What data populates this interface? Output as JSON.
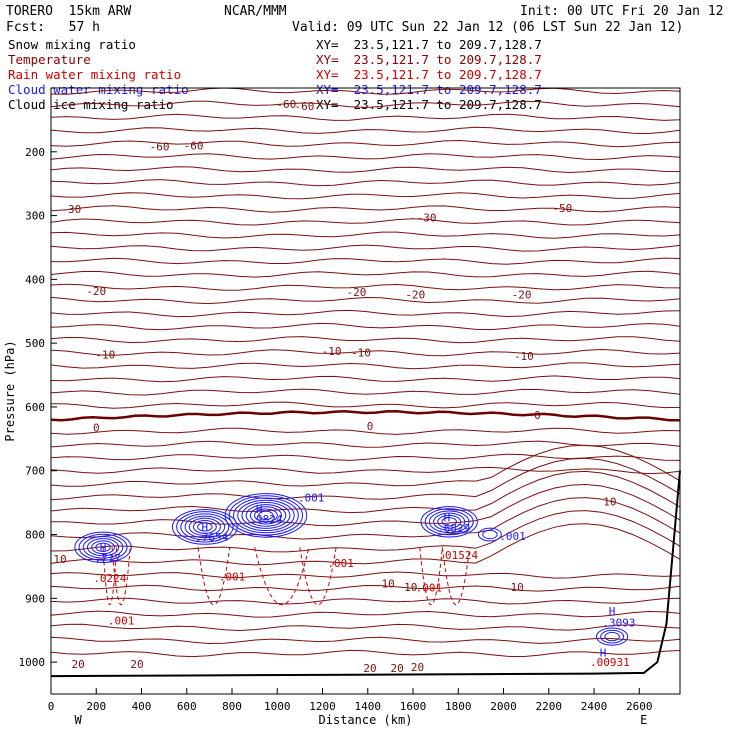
{
  "header": {
    "model": "TORERO  15km ARW",
    "org": "NCAR/MMM",
    "init": "Init: 00 UTC Fri 20 Jan 12",
    "fcst": "Fcst:   57 h",
    "valid": "Valid: 09 UTC Sun 22 Jan 12 (06 LST Sun 22 Jan 12)"
  },
  "fields": [
    {
      "label": "Snow mixing ratio",
      "xy": "XY=  23.5,121.7 to 209.7,128.7",
      "color": "#000000",
      "xy_color": "#000000"
    },
    {
      "label": "Temperature",
      "xy": "XY=  23.5,121.7 to 209.7,128.7",
      "color": "#8b0000",
      "xy_color": "#8b0000"
    },
    {
      "label": "Rain water mixing ratio",
      "xy": "XY=  23.5,121.7 to 209.7,128.7",
      "color": "#d00000",
      "xy_color": "#d00000"
    },
    {
      "label": "Cloud water mixing ratio",
      "xy": "XY=  23.5,121.7 to 209.7,128.7",
      "color": "#1a1aff",
      "xy_color": "#1a1aff"
    },
    {
      "label": "Cloud ice mixing ratio",
      "xy": "XY=  23.5,121.7 to 209.7,128.7",
      "color": "#000000",
      "xy_color": "#000000"
    }
  ],
  "chart_data": {
    "type": "contour-cross-section",
    "xlabel": "Distance (km)",
    "ylabel": "Pressure (hPa)",
    "xlim": [
      0,
      2780
    ],
    "ylim": [
      1050,
      100
    ],
    "x_ticks": [
      0,
      200,
      400,
      600,
      800,
      1000,
      1200,
      1400,
      1600,
      1800,
      2000,
      2200,
      2400,
      2600
    ],
    "y_ticks": [
      200,
      300,
      400,
      500,
      600,
      700,
      800,
      900,
      1000
    ],
    "left_end": "W",
    "right_end": "E",
    "temperature_contours": {
      "units": "C",
      "interval": 5,
      "zero_isotherm_pressure_hPa": 620,
      "labels": [
        {
          "text": "-60",
          "x": 1120,
          "p": 128
        },
        {
          "text": "-60",
          "x": 1040,
          "p": 125
        },
        {
          "text": "-60",
          "x": 480,
          "p": 192
        },
        {
          "text": "-60",
          "x": 630,
          "p": 190
        },
        {
          "text": "-50",
          "x": 2260,
          "p": 288
        },
        {
          "text": "-30",
          "x": 1660,
          "p": 303
        },
        {
          "text": "-30",
          "x": 90,
          "p": 290
        },
        {
          "text": "-20",
          "x": 200,
          "p": 418
        },
        {
          "text": "-20",
          "x": 1350,
          "p": 420
        },
        {
          "text": "-20",
          "x": 1610,
          "p": 424
        },
        {
          "text": "-20",
          "x": 2080,
          "p": 424
        },
        {
          "text": "-10",
          "x": 240,
          "p": 518
        },
        {
          "text": "-10",
          "x": 1240,
          "p": 512
        },
        {
          "text": "-10",
          "x": 1370,
          "p": 515
        },
        {
          "text": "-10",
          "x": 2090,
          "p": 520
        },
        {
          "text": "0",
          "x": 200,
          "p": 632
        },
        {
          "text": "0",
          "x": 1410,
          "p": 630
        },
        {
          "text": "0",
          "x": 2150,
          "p": 613
        },
        {
          "text": "10",
          "x": 2470,
          "p": 748
        },
        {
          "text": "10",
          "x": 40,
          "p": 838
        },
        {
          "text": "10",
          "x": 1490,
          "p": 877
        },
        {
          "text": "10",
          "x": 1590,
          "p": 882
        },
        {
          "text": "10",
          "x": 2060,
          "p": 882
        },
        {
          "text": "20",
          "x": 120,
          "p": 1003
        },
        {
          "text": "20",
          "x": 380,
          "p": 1003
        },
        {
          "text": "20",
          "x": 1410,
          "p": 1009
        },
        {
          "text": "20",
          "x": 1530,
          "p": 1009
        },
        {
          "text": "20",
          "x": 1620,
          "p": 1008
        }
      ]
    },
    "rain_water_labels": [
      {
        "text": ".0224",
        "x": 260,
        "p": 868
      },
      {
        "text": ".001",
        "x": 310,
        "p": 935
      },
      {
        "text": ".001",
        "x": 800,
        "p": 866
      },
      {
        "text": ".001",
        "x": 1280,
        "p": 845
      },
      {
        "text": ".001",
        "x": 1670,
        "p": 883
      },
      {
        "text": ".01524",
        "x": 1800,
        "p": 832
      },
      {
        "text": ".00931",
        "x": 2470,
        "p": 1000
      }
    ],
    "cloud_water_labels": [
      {
        "text": "H",
        "x": 230,
        "p": 820
      },
      {
        "text": ".717",
        "x": 250,
        "p": 837
      },
      {
        "text": "H",
        "x": 680,
        "p": 788
      },
      {
        "text": ".7654",
        "x": 710,
        "p": 804
      },
      {
        "text": "H",
        "x": 920,
        "p": 760
      },
      {
        "text": ".9824",
        "x": 950,
        "p": 776
      },
      {
        "text": ".001",
        "x": 1150,
        "p": 742
      },
      {
        "text": "H",
        "x": 1750,
        "p": 773
      },
      {
        "text": ".6829",
        "x": 1780,
        "p": 790
      },
      {
        "text": ".001",
        "x": 2040,
        "p": 802
      },
      {
        "text": "H",
        "x": 2480,
        "p": 920
      },
      {
        "text": ".3093",
        "x": 2510,
        "p": 938
      },
      {
        "text": "H",
        "x": 2440,
        "p": 985
      }
    ],
    "cloud_water_maxima": [
      {
        "x": 230,
        "p": 820,
        "value": 0.717
      },
      {
        "x": 680,
        "p": 788,
        "value": 0.7654
      },
      {
        "x": 950,
        "p": 770,
        "value": 0.9824
      },
      {
        "x": 1760,
        "p": 780,
        "value": 0.6829
      },
      {
        "x": 1940,
        "p": 800,
        "value": 0.001
      },
      {
        "x": 2480,
        "p": 960,
        "value": 0.3093
      }
    ]
  }
}
